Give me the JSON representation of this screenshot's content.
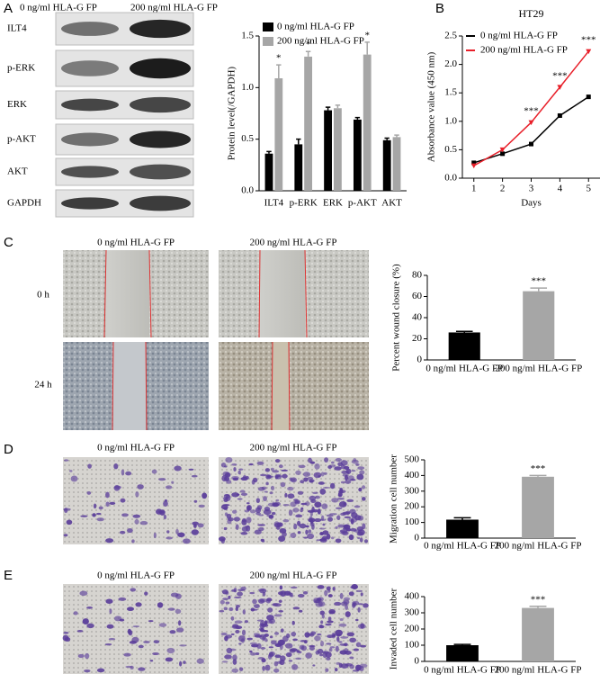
{
  "panels": {
    "letters": [
      "A",
      "B",
      "C",
      "D",
      "E"
    ]
  },
  "blot": {
    "columns": [
      "0 ng/ml HLA-G FP",
      "200 ng/ml HLA-G FP"
    ],
    "rows": [
      "ILT4",
      "p-ERK",
      "ERK",
      "p-AKT",
      "AKT",
      "GAPDH"
    ]
  },
  "micrographs": {
    "c": {
      "columns": [
        "0 ng/ml HLA-G FP",
        "200 ng/ml HLA-G FP"
      ],
      "rows": [
        "0 h",
        "24 h"
      ]
    },
    "d": {
      "columns": [
        "0 ng/ml HLA-G FP",
        "200 ng/ml HLA-G FP"
      ]
    },
    "e": {
      "columns": [
        "0 ng/ml HLA-G FP",
        "200 ng/ml HLA-G FP"
      ]
    }
  },
  "chart_data": [
    {
      "type": "bar",
      "ylabel": "Protein level(/GAPDH)",
      "categories": [
        "ILT4",
        "p-ERK",
        "ERK",
        "p-AKT",
        "AKT"
      ],
      "series": [
        {
          "name": "0 ng/ml HLA-G FP",
          "color": "#000000",
          "values": [
            0.36,
            0.45,
            0.78,
            0.69,
            0.49
          ],
          "errors": [
            0.02,
            0.05,
            0.03,
            0.02,
            0.02
          ]
        },
        {
          "name": "200 ng/ml HLA-G FP",
          "color": "#a6a6a6",
          "values": [
            1.09,
            1.3,
            0.8,
            1.32,
            0.52
          ],
          "errors": [
            0.13,
            0.05,
            0.03,
            0.12,
            0.02
          ],
          "annotations": [
            "*",
            "*",
            null,
            "*",
            null
          ]
        }
      ],
      "ylim": [
        0,
        1.5
      ],
      "yticks": [
        {
          "value": 0,
          "label": "0.0"
        },
        0.5,
        {
          "value": 1,
          "label": "1.0"
        },
        1.5
      ]
    },
    {
      "type": "line",
      "title": "HT29",
      "xlabel": "Days",
      "ylabel": "Absorbance value (450 nm)",
      "x": [
        1,
        2,
        3,
        4,
        5
      ],
      "series": [
        {
          "name": "0 ng/ml HLA-G FP",
          "color": "#000000",
          "values": [
            0.27,
            0.43,
            0.6,
            1.1,
            1.43
          ]
        },
        {
          "name": "200 ng/ml HLA-G FP",
          "color": "#e8202a",
          "values": [
            0.22,
            0.5,
            0.98,
            1.6,
            2.23
          ],
          "annotations": [
            null,
            null,
            "***",
            "***",
            "***"
          ]
        }
      ],
      "xlim": [
        0.6,
        5.4
      ],
      "xticks": [
        1,
        2,
        3,
        4,
        5
      ],
      "ylim": [
        0,
        2.5
      ],
      "yticks": [
        {
          "value": 0,
          "label": "0.0"
        },
        0.5,
        {
          "value": 1,
          "label": "1.0"
        },
        1.5,
        {
          "value": 2,
          "label": "2.0"
        },
        2.5
      ]
    },
    {
      "type": "bar",
      "ylabel": "Percent wound closure (%)",
      "categories": [
        "0 ng/ml HLA-G FP",
        "200 ng/ml HLA-G FP"
      ],
      "values": [
        26,
        65
      ],
      "errors": [
        1,
        3
      ],
      "colors": [
        "#000000",
        "#a6a6a6"
      ],
      "annotations": [
        null,
        "***"
      ],
      "ylim": [
        0,
        80
      ],
      "yticks": [
        0,
        20,
        40,
        60,
        80
      ]
    },
    {
      "type": "bar",
      "ylabel": "Migration cell number",
      "categories": [
        "0 ng/ml HLA-G FP",
        "200 ng/ml HLA-G FP"
      ],
      "values": [
        118,
        392
      ],
      "errors": [
        12,
        8
      ],
      "colors": [
        "#000000",
        "#a6a6a6"
      ],
      "annotations": [
        null,
        "***"
      ],
      "ylim": [
        0,
        500
      ],
      "yticks": [
        0,
        100,
        200,
        300,
        400,
        500
      ]
    },
    {
      "type": "bar",
      "ylabel": "Invaded cell number",
      "categories": [
        "0 ng/ml HLA-G FP",
        "200 ng/ml HLA-G FP"
      ],
      "values": [
        100,
        330
      ],
      "errors": [
        5,
        10
      ],
      "colors": [
        "#000000",
        "#a6a6a6"
      ],
      "annotations": [
        null,
        "***"
      ],
      "ylim": [
        0,
        400
      ],
      "yticks": [
        0,
        100,
        200,
        300,
        400
      ]
    }
  ]
}
